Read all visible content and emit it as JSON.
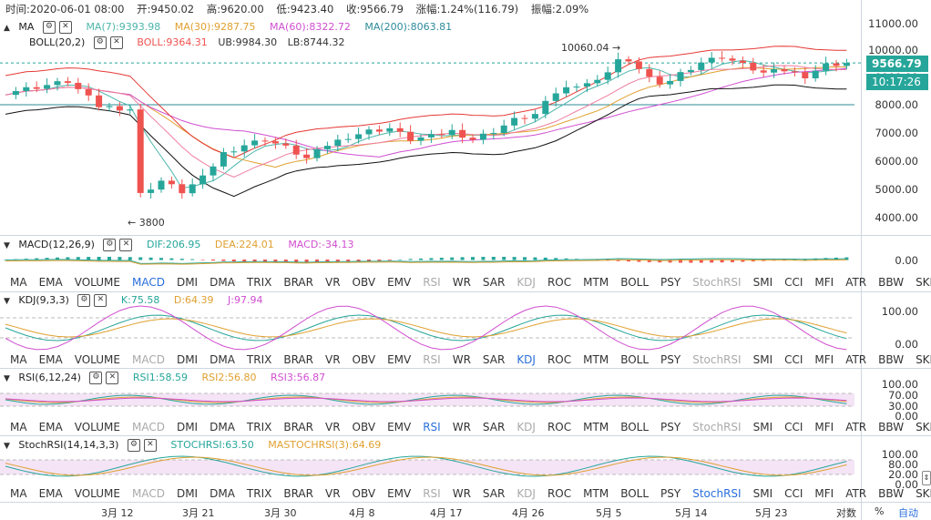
{
  "header": {
    "time_label": "时间:2020-06-01 08:00",
    "open_label": "开:9450.02",
    "high_label": "高:9620.00",
    "low_label": "低:9423.40",
    "close_label": "收:9566.79",
    "change_label": "涨幅:1.24%(116.79)",
    "amplitude_label": "振幅:2.09%"
  },
  "main_legend": {
    "ma_name": "MA",
    "ma7": "MA(7):9393.98",
    "ma30": "MA(30):9287.75",
    "ma60": "MA(60):8322.72",
    "ma200": "MA(200):8063.81",
    "boll_name": "BOLL(20,2)",
    "boll": "BOLL:9364.31",
    "ub": "UB:9984.30",
    "lb": "LB:8744.32"
  },
  "annotations": {
    "high_note": "10060.04 →",
    "low_note": "← 3800"
  },
  "price_axis": [
    "11000.00",
    "10000.00",
    "9000.00",
    "8000.00",
    "7000.00",
    "6000.00",
    "5000.00",
    "4000.00"
  ],
  "current_price": "9566.79",
  "current_time": "10:17:26",
  "macd": {
    "name": "MACD(12,26,9)",
    "dif": "DIF:206.95",
    "dea": "DEA:224.01",
    "macd": "MACD:-34.13",
    "axis": [
      "0.00"
    ]
  },
  "kdj": {
    "name": "KDJ(9,3,3)",
    "k": "K:75.58",
    "d": "D:64.39",
    "j": "J:97.94",
    "axis": [
      "100.00",
      "0.00"
    ]
  },
  "rsi": {
    "name": "RSI(6,12,24)",
    "rsi1": "RSI1:58.59",
    "rsi2": "RSI2:56.80",
    "rsi3": "RSI3:56.87",
    "axis": [
      "100.00",
      "70.00",
      "30.00",
      "0.00"
    ]
  },
  "stochrsi": {
    "name": "StochRSI(14,14,3,3)",
    "stoch": "STOCHRSI:63.50",
    "mastoch": "MASTOCHRSI(3):64.69",
    "axis": [
      "100.00",
      "80.00",
      "20.00",
      "0.00"
    ]
  },
  "indicator_tabs": [
    "MA",
    "EMA",
    "VOLUME",
    "MACD",
    "DMI",
    "DMA",
    "TRIX",
    "BRAR",
    "VR",
    "OBV",
    "EMV",
    "RSI",
    "WR",
    "SAR",
    "KDJ",
    "ROC",
    "MTM",
    "BOLL",
    "PSY",
    "StochRSI",
    "SMI",
    "CCI",
    "MFI",
    "ATR",
    "BBW",
    "SKDJ"
  ],
  "date_axis": [
    "3月 12",
    "3月 21",
    "3月 30",
    "4月 8",
    "4月 17",
    "4月 26",
    "5月 5",
    "5月 14",
    "5月 23"
  ],
  "footer": {
    "log_label": "对数",
    "percent_label": "%",
    "auto_label": "自动"
  },
  "colors": {
    "up": "#26a69a",
    "down": "#ef5350",
    "ma7": "#4db6ac",
    "ma30": "#e0a030",
    "ma60": "#d04fd0",
    "ma200": "#2e8b9a",
    "ub": "#e53935",
    "lb": "#111111",
    "boll": "#ef7fa0",
    "accent": "#2a6fdb"
  }
}
